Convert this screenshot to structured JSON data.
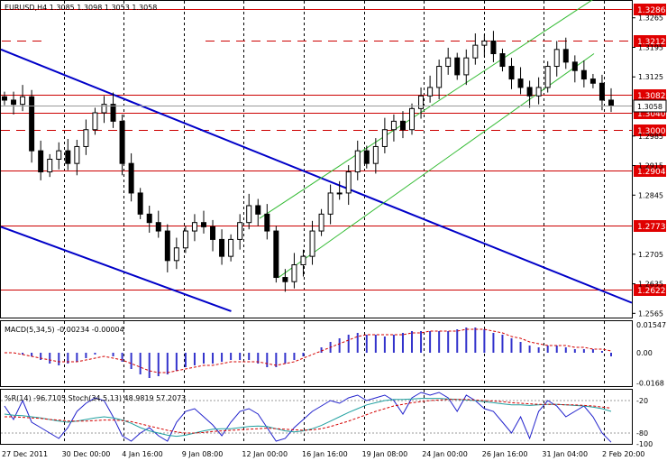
{
  "colors": {
    "level_line": "#cc0000",
    "level_tag": "#e00000",
    "trend_blue": "#0000c8",
    "channel_green": "#33bb33",
    "candle": "#000000",
    "macd_hist": "#3333cc",
    "macd_signal": "#d40000",
    "wpr_line": "#2222cc",
    "stoch_main": "#20a0a0",
    "stoch_signal": "#d40000",
    "grid": "#000000"
  },
  "chart_data": [
    {
      "type": "candlestick",
      "title": "EURUSD,H4  1.3085 1.3098 1.3053 1.3058",
      "ylim": [
        1.2555,
        1.3305
      ],
      "y_ticks": [
        "1.3265",
        "1.3195",
        "1.3125",
        "1.2985",
        "1.2915",
        "1.2845",
        "1.2705",
        "1.2635",
        "1.2565"
      ],
      "x_ticks": [
        "27 Dec 2011",
        "30 Dec 00:00",
        "4 Jan 16:00",
        "9 Jan 08:00",
        "12 Jan 00:00",
        "16 Jan 16:00",
        "19 Jan 08:00",
        "24 Jan 00:00",
        "26 Jan 16:00",
        "31 Jan 04:00",
        "2 Feb 20:00"
      ],
      "current_price": "1.3058",
      "levels": [
        {
          "value": 1.3286,
          "label": "1.3286",
          "style": "solid"
        },
        {
          "value": 1.3212,
          "label": "1.3212",
          "style": "dashed"
        },
        {
          "value": 1.3082,
          "label": "1.3082",
          "style": "solid"
        },
        {
          "value": 1.304,
          "label": "1.3040",
          "style": "solid"
        },
        {
          "value": 1.3,
          "label": "1.3000",
          "style": "dashed"
        },
        {
          "value": 1.2904,
          "label": "1.2904",
          "style": "solid"
        },
        {
          "value": 1.2773,
          "label": "1.2773",
          "style": "solid"
        },
        {
          "value": 1.2622,
          "label": "1.2622",
          "style": "solid"
        }
      ],
      "close_path": [
        1.307,
        1.306,
        1.3078,
        1.295,
        1.29,
        1.293,
        1.295,
        1.292,
        1.296,
        1.3,
        1.304,
        1.306,
        1.302,
        1.292,
        1.285,
        1.28,
        1.278,
        1.276,
        1.269,
        1.272,
        1.276,
        1.278,
        1.277,
        1.274,
        1.27,
        1.274,
        1.278,
        1.282,
        1.28,
        1.276,
        1.265,
        1.264,
        1.268,
        1.27,
        1.276,
        1.28,
        1.285,
        1.285,
        1.29,
        1.295,
        1.292,
        1.296,
        1.3,
        1.302,
        1.3,
        1.305,
        1.308,
        1.31,
        1.315,
        1.317,
        1.313,
        1.317,
        1.32,
        1.321,
        1.318,
        1.315,
        1.312,
        1.31,
        1.308,
        1.31,
        1.315,
        1.319,
        1.316,
        1.314,
        1.312,
        1.311,
        1.307,
        1.3058
      ],
      "blue_trendlines": [
        {
          "from": [
            0,
            1.319
          ],
          "to": [
            1,
            1.259
          ]
        },
        {
          "from": [
            0,
            1.277
          ],
          "to": [
            0.365,
            1.257
          ]
        }
      ],
      "green_channel": [
        {
          "from": [
            0.41,
            1.279
          ],
          "to": [
            0.94,
            1.331
          ]
        },
        {
          "from": [
            0.44,
            1.265
          ],
          "to": [
            0.94,
            1.318
          ]
        }
      ]
    },
    {
      "type": "bar",
      "title": "MACD(5,34,5) -0.00234 -0.00004",
      "ylim": [
        -0.0185,
        0.0175
      ],
      "y_ticks": [
        "0.01547",
        "0.00",
        "-0.0168"
      ],
      "histogram": [
        0.0,
        0.0,
        -0.001,
        -0.002,
        -0.004,
        -0.006,
        -0.007,
        -0.006,
        -0.005,
        -0.003,
        -0.001,
        0.0,
        -0.002,
        -0.005,
        -0.009,
        -0.012,
        -0.014,
        -0.013,
        -0.012,
        -0.01,
        -0.008,
        -0.007,
        -0.006,
        -0.006,
        -0.005,
        -0.004,
        -0.004,
        -0.004,
        -0.006,
        -0.008,
        -0.008,
        -0.006,
        -0.004,
        -0.002,
        0.0,
        0.003,
        0.006,
        0.008,
        0.01,
        0.011,
        0.01,
        0.01,
        0.009,
        0.01,
        0.011,
        0.012,
        0.012,
        0.012,
        0.012,
        0.012,
        0.013,
        0.014,
        0.014,
        0.013,
        0.011,
        0.01,
        0.008,
        0.006,
        0.004,
        0.003,
        0.004,
        0.004,
        0.003,
        0.002,
        0.002,
        0.002,
        0.001,
        -0.002
      ],
      "signal": [
        0.0,
        0.0,
        -0.001,
        -0.002,
        -0.003,
        -0.004,
        -0.005,
        -0.005,
        -0.005,
        -0.004,
        -0.003,
        -0.002,
        -0.003,
        -0.004,
        -0.006,
        -0.008,
        -0.01,
        -0.011,
        -0.011,
        -0.01,
        -0.009,
        -0.008,
        -0.007,
        -0.007,
        -0.006,
        -0.005,
        -0.005,
        -0.005,
        -0.005,
        -0.006,
        -0.007,
        -0.006,
        -0.005,
        -0.003,
        -0.001,
        0.001,
        0.003,
        0.005,
        0.007,
        0.009,
        0.01,
        0.01,
        0.01,
        0.01,
        0.01,
        0.011,
        0.011,
        0.012,
        0.012,
        0.012,
        0.012,
        0.013,
        0.013,
        0.013,
        0.012,
        0.011,
        0.009,
        0.008,
        0.006,
        0.005,
        0.004,
        0.004,
        0.004,
        0.003,
        0.003,
        0.002,
        0.002,
        0.001
      ]
    },
    {
      "type": "line",
      "title": "%R(14) -96.7105  Stoch(34,5,13) 48.9819 57.2073",
      "ylim": [
        -100,
        0
      ],
      "y_ticks": [
        "-20",
        "-80",
        "-100"
      ],
      "series": [
        {
          "values": [
            -30,
            -55,
            -20,
            -60,
            -70,
            -80,
            -90,
            -70,
            -40,
            -25,
            -15,
            -20,
            -50,
            -85,
            -95,
            -80,
            -70,
            -85,
            -95,
            -60,
            -40,
            -35,
            -50,
            -65,
            -85,
            -60,
            -40,
            -35,
            -45,
            -70,
            -95,
            -90,
            -70,
            -55,
            -40,
            -30,
            -20,
            -25,
            -15,
            -10,
            -20,
            -15,
            -10,
            -20,
            -45,
            -15,
            -5,
            -10,
            -5,
            -15,
            -40,
            -10,
            -20,
            -35,
            -40,
            -60,
            -80,
            -50,
            -90,
            -40,
            -20,
            -30,
            -50,
            -40,
            -30,
            -50,
            -80,
            -97
          ]
        },
        {
          "values": [
            -45,
            -47,
            -48,
            -50,
            -52,
            -55,
            -58,
            -60,
            -58,
            -55,
            -52,
            -50,
            -52,
            -56,
            -62,
            -70,
            -76,
            -80,
            -84,
            -86,
            -84,
            -80,
            -76,
            -73,
            -72,
            -72,
            -70,
            -68,
            -67,
            -68,
            -72,
            -76,
            -78,
            -76,
            -72,
            -66,
            -58,
            -50,
            -42,
            -35,
            -28,
            -24,
            -20,
            -18,
            -18,
            -17,
            -16,
            -16,
            -16,
            -17,
            -18,
            -19,
            -20,
            -22,
            -24,
            -26,
            -28,
            -28,
            -29,
            -28,
            -27,
            -27,
            -28,
            -29,
            -30,
            -32,
            -35,
            -40
          ]
        },
        {
          "values": [
            -50,
            -50,
            -51,
            -52,
            -53,
            -55,
            -56,
            -58,
            -58,
            -58,
            -57,
            -56,
            -56,
            -57,
            -59,
            -63,
            -67,
            -71,
            -75,
            -78,
            -80,
            -80,
            -79,
            -77,
            -76,
            -75,
            -74,
            -73,
            -72,
            -71,
            -72,
            -73,
            -74,
            -75,
            -74,
            -72,
            -68,
            -63,
            -58,
            -52,
            -46,
            -40,
            -35,
            -30,
            -27,
            -24,
            -22,
            -20,
            -19,
            -18,
            -18,
            -18,
            -19,
            -20,
            -21,
            -22,
            -24,
            -25,
            -26,
            -27,
            -27,
            -27,
            -28,
            -28,
            -29,
            -30,
            -32,
            -34
          ]
        }
      ]
    }
  ]
}
